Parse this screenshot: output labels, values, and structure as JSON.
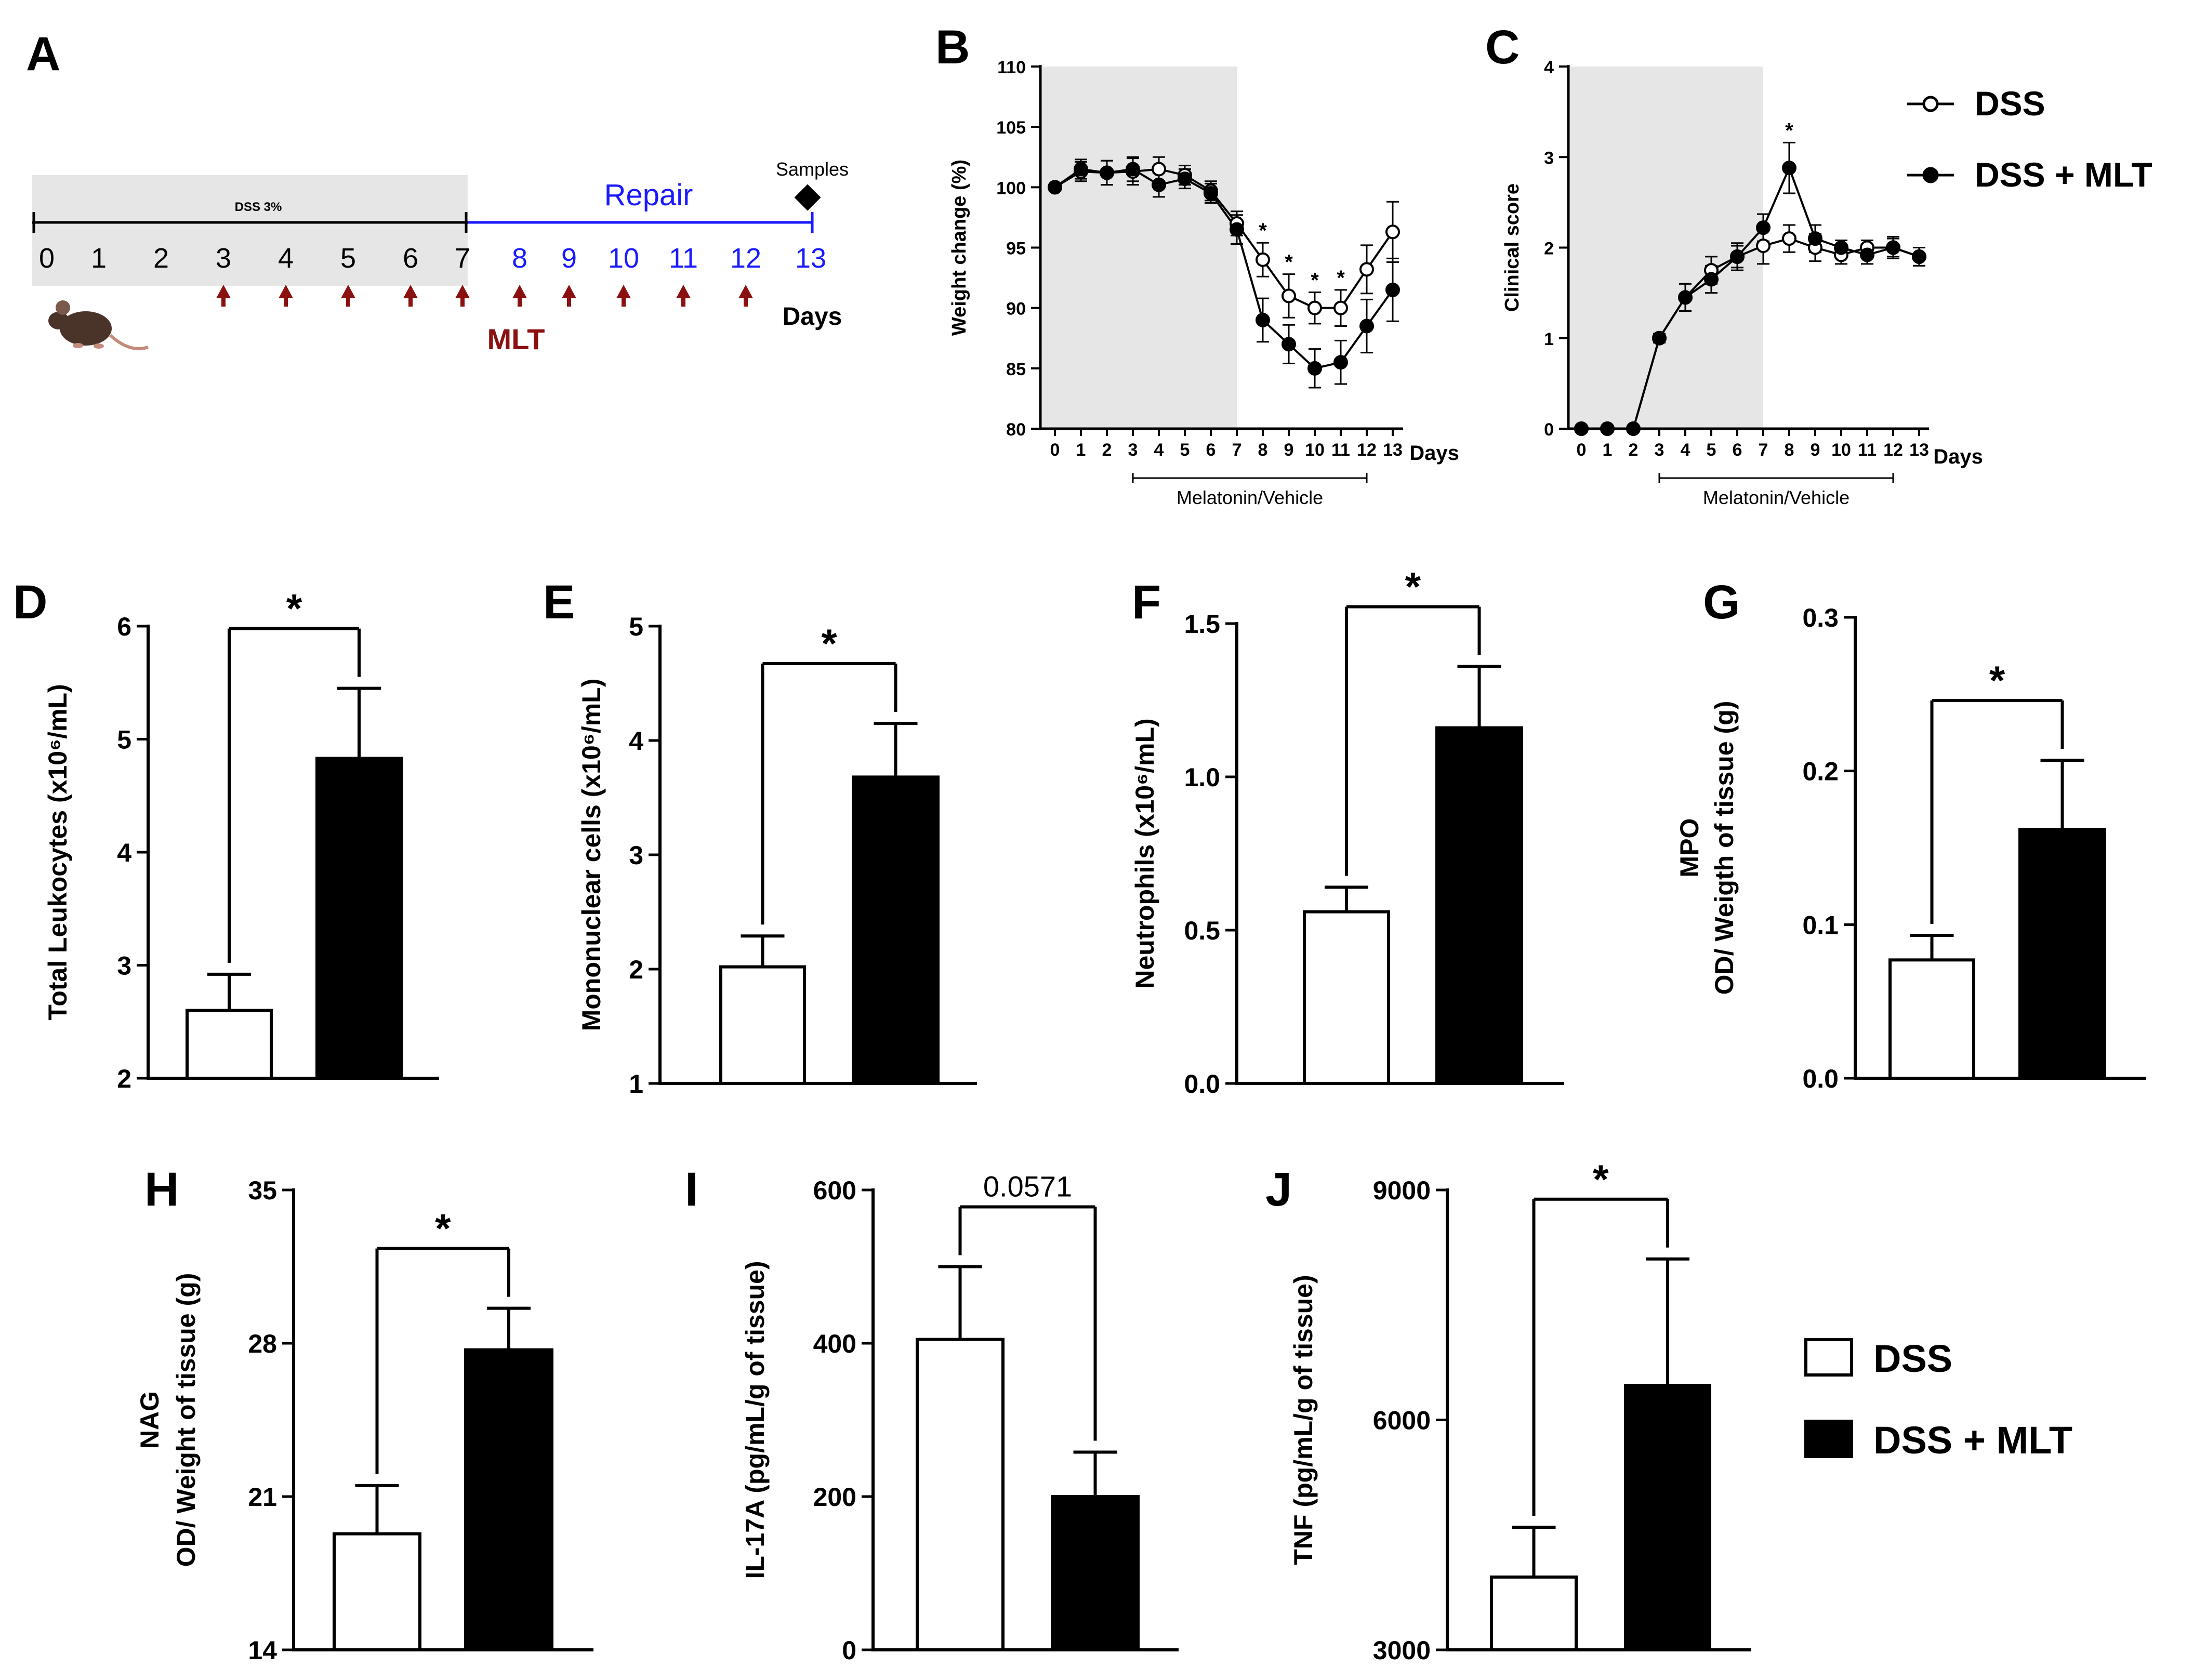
{
  "panels": {
    "A": "A",
    "B": "B",
    "C": "C",
    "D": "D",
    "E": "E",
    "F": "F",
    "G": "G",
    "H": "H",
    "I": "I",
    "J": "J"
  },
  "timeline": {
    "dss_label": "DSS 3%",
    "repair_label": "Repair",
    "samples_label": "Samples",
    "days_label": "Days",
    "mlt_label": "MLT",
    "days_black": [
      "0",
      "1",
      "2",
      "3",
      "4",
      "5",
      "6",
      "7"
    ],
    "days_blue": [
      "8",
      "9",
      "10",
      "11",
      "12",
      "13"
    ],
    "arrow_days": [
      3,
      4,
      5,
      6,
      7,
      8,
      9,
      10,
      11,
      12
    ],
    "colors": {
      "repair": "#1a1aff",
      "arrow": "#8b1010",
      "mlt": "#8b1010",
      "shade": "#e6e6e6"
    }
  },
  "legend_line": {
    "dss": "DSS",
    "dss_mlt": "DSS + MLT"
  },
  "legend_bar": {
    "dss": "DSS",
    "dss_mlt": "DSS + MLT"
  },
  "chart_data": [
    {
      "panel": "B",
      "type": "line",
      "ylabel": "Weight change (%)",
      "xlabel": "Days",
      "x": [
        0,
        1,
        2,
        3,
        4,
        5,
        6,
        7,
        8,
        9,
        10,
        11,
        12,
        13
      ],
      "ylim": [
        80,
        110
      ],
      "yticks": [
        80,
        85,
        90,
        95,
        100,
        105,
        110
      ],
      "shaded_range": [
        0,
        7
      ],
      "bracket_label": "Melatonin/Vehicle",
      "bracket_range": [
        3,
        12
      ],
      "series": [
        {
          "name": "DSS",
          "marker": "open",
          "values": [
            100,
            101.3,
            101.2,
            101.3,
            101.5,
            101,
            99.7,
            97,
            94,
            91,
            90,
            90,
            93.2,
            96.3
          ],
          "errors": [
            0,
            0.8,
            1,
            1.1,
            1,
            0.8,
            0.8,
            1,
            1.4,
            1.8,
            1.3,
            1.5,
            2,
            2.5
          ]
        },
        {
          "name": "DSS + MLT",
          "marker": "filled",
          "values": [
            100,
            101.5,
            101.2,
            101.5,
            100.2,
            100.7,
            99.5,
            96.5,
            89,
            87,
            85,
            85.5,
            88.5,
            91.5
          ],
          "errors": [
            0,
            0.8,
            1,
            1,
            1,
            0.8,
            0.8,
            1.2,
            1.8,
            1.6,
            1.6,
            1.8,
            2.2,
            2.6
          ]
        }
      ],
      "significance": [
        {
          "x": 8,
          "label": "*"
        },
        {
          "x": 9,
          "label": "*"
        },
        {
          "x": 10,
          "label": "*"
        },
        {
          "x": 11,
          "label": "*"
        }
      ]
    },
    {
      "panel": "C",
      "type": "line",
      "ylabel": "Clinical score",
      "xlabel": "Days",
      "x": [
        0,
        1,
        2,
        3,
        4,
        5,
        6,
        7,
        8,
        9,
        10,
        11,
        12,
        13
      ],
      "ylim": [
        0,
        4
      ],
      "yticks": [
        0,
        1,
        2,
        3,
        4
      ],
      "shaded_range": [
        0,
        7
      ],
      "bracket_label": "Melatonin/Vehicle",
      "bracket_range": [
        3,
        12
      ],
      "series": [
        {
          "name": "DSS",
          "marker": "open",
          "values": [
            0,
            0,
            0,
            1,
            1.45,
            1.75,
            1.9,
            2.02,
            2.1,
            2,
            1.92,
            2,
            2,
            1.9
          ],
          "errors": [
            0,
            0,
            0,
            0.05,
            0.15,
            0.15,
            0.15,
            0.2,
            0.15,
            0.15,
            0.1,
            0.08,
            0.1,
            0.1
          ]
        },
        {
          "name": "DSS + MLT",
          "marker": "filled",
          "values": [
            0,
            0,
            0,
            1,
            1.45,
            1.65,
            1.9,
            2.22,
            2.88,
            2.1,
            2,
            1.92,
            2,
            1.9
          ],
          "errors": [
            0,
            0,
            0,
            0.05,
            0.15,
            0.15,
            0.12,
            0.15,
            0.28,
            0.15,
            0.08,
            0.1,
            0.12,
            0.1
          ]
        }
      ],
      "significance": [
        {
          "x": 8,
          "label": "*"
        }
      ]
    },
    {
      "panel": "D",
      "type": "bar",
      "ylabel": "Total Leukocytes (x10⁶/mL)",
      "categories": [
        "DSS",
        "DSS + MLT"
      ],
      "values": [
        2.6,
        4.83
      ],
      "errors": [
        0.32,
        0.62
      ],
      "ylim": [
        2,
        6
      ],
      "yticks": [
        "2",
        "3",
        "4",
        "5",
        "6"
      ],
      "significance": "*"
    },
    {
      "panel": "E",
      "type": "bar",
      "ylabel": "Mononuclear cells (x10⁶/mL)",
      "categories": [
        "DSS",
        "DSS + MLT"
      ],
      "values": [
        2.02,
        3.68
      ],
      "errors": [
        0.27,
        0.47
      ],
      "ylim": [
        1,
        5
      ],
      "yticks": [
        "1",
        "2",
        "3",
        "4",
        "5"
      ],
      "significance": "*"
    },
    {
      "panel": "F",
      "type": "bar",
      "ylabel": "Neutrophils (x10⁶/mL)",
      "categories": [
        "DSS",
        "DSS + MLT"
      ],
      "values": [
        0.56,
        1.16
      ],
      "errors": [
        0.08,
        0.2
      ],
      "ylim": [
        0,
        1.5
      ],
      "yticks": [
        "0.0",
        "0.5",
        "1.0",
        "1.5"
      ],
      "significance": "*"
    },
    {
      "panel": "G",
      "type": "bar",
      "ylabel": [
        "MPO",
        "OD/ Weigth of tissue (g)"
      ],
      "categories": [
        "DSS",
        "DSS + MLT"
      ],
      "values": [
        0.077,
        0.162
      ],
      "errors": [
        0.016,
        0.045
      ],
      "ylim": [
        0,
        0.3
      ],
      "yticks": [
        "0.0",
        "0.1",
        "0.2",
        "0.3"
      ],
      "significance": "*"
    },
    {
      "panel": "H",
      "type": "bar",
      "ylabel": [
        "NAG",
        "OD/ Weight of tissue (g)"
      ],
      "categories": [
        "DSS",
        "DSS + MLT"
      ],
      "values": [
        19.3,
        27.7
      ],
      "errors": [
        2.2,
        1.9
      ],
      "ylim": [
        14,
        35
      ],
      "yticks": [
        "14",
        "21",
        "28",
        "35"
      ],
      "significance": "*"
    },
    {
      "panel": "I",
      "type": "bar",
      "ylabel": "IL-17A (pg/mL/g of tissue)",
      "categories": [
        "DSS",
        "DSS + MLT"
      ],
      "values": [
        405,
        200
      ],
      "errors": [
        95,
        58
      ],
      "ylim": [
        0,
        600
      ],
      "yticks": [
        "0",
        "200",
        "400",
        "600"
      ],
      "significance": "0.0571"
    },
    {
      "panel": "J",
      "type": "bar",
      "ylabel": "TNF (pg/mL/g of tissue)",
      "categories": [
        "DSS",
        "DSS + MLT"
      ],
      "values": [
        3950,
        6450
      ],
      "errors": [
        650,
        1650
      ],
      "ylim": [
        3000,
        9000
      ],
      "yticks": [
        "3000",
        "6000",
        "9000"
      ],
      "significance": "*"
    }
  ]
}
